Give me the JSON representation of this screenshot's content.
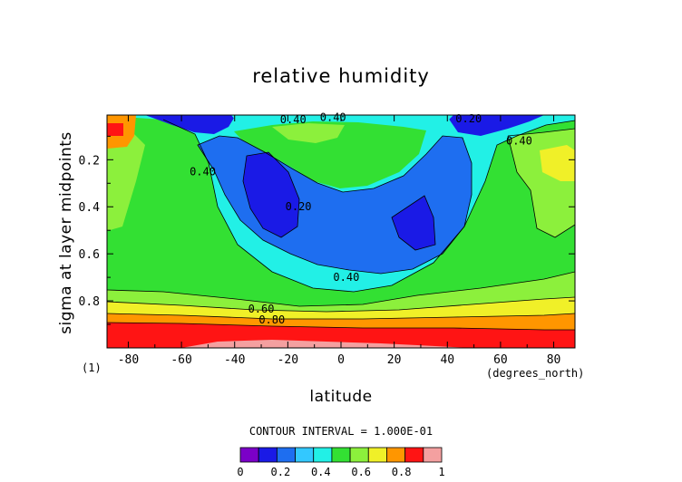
{
  "chart_data": {
    "type": "contour",
    "title": "relative humidity",
    "xlabel": "latitude",
    "xunits": "(degrees_north)",
    "ylabel": "sigma at layer midpoints",
    "panel_label": "(1)",
    "xlim": [
      -88,
      88
    ],
    "ylim": [
      1.0,
      0.01
    ],
    "x_ticks": [
      -80,
      -60,
      -40,
      -20,
      0,
      20,
      40,
      60,
      80
    ],
    "x_tick_labels": [
      "-80",
      "-60",
      "-40",
      "-20",
      "0",
      "20",
      "40",
      "60",
      "80"
    ],
    "y_ticks": [
      0.2,
      0.4,
      0.6,
      0.8
    ],
    "y_tick_labels": [
      "0.2",
      "0.4",
      "0.6",
      "0.8"
    ],
    "contour_interval_text": "CONTOUR INTERVAL = 1.000E-01",
    "colorbar": {
      "levels": [
        0,
        0.1,
        0.2,
        0.3,
        0.4,
        0.5,
        0.6,
        0.7,
        0.8,
        0.9,
        1.0
      ],
      "colors": [
        "#7b00c8",
        "#1a1ae6",
        "#1e6ef0",
        "#33c8ff",
        "#22f0e6",
        "#33e033",
        "#8cf03c",
        "#f0f028",
        "#ff9600",
        "#ff1414",
        "#f4a0a0"
      ],
      "tick_labels": [
        "0",
        "0.2",
        "0.4",
        "0.6",
        "0.8",
        "1"
      ]
    },
    "contour_labels": [
      {
        "text": "0.40",
        "lat": -3,
        "sigma": 0.02
      },
      {
        "text": "0.40",
        "lat": -18,
        "sigma": 0.03
      },
      {
        "text": "0.20",
        "lat": 48,
        "sigma": 0.025
      },
      {
        "text": "0.40",
        "lat": 67,
        "sigma": 0.12
      },
      {
        "text": "0.40",
        "lat": -52,
        "sigma": 0.25
      },
      {
        "text": "0.20",
        "lat": -16,
        "sigma": 0.4
      },
      {
        "text": "0.40",
        "lat": 2,
        "sigma": 0.7
      },
      {
        "text": "0.60",
        "lat": -30,
        "sigma": 0.835
      },
      {
        "text": "0.80",
        "lat": -26,
        "sigma": 0.88
      }
    ],
    "colors": {
      "axis": "#000000",
      "background": "#ffffff"
    }
  }
}
